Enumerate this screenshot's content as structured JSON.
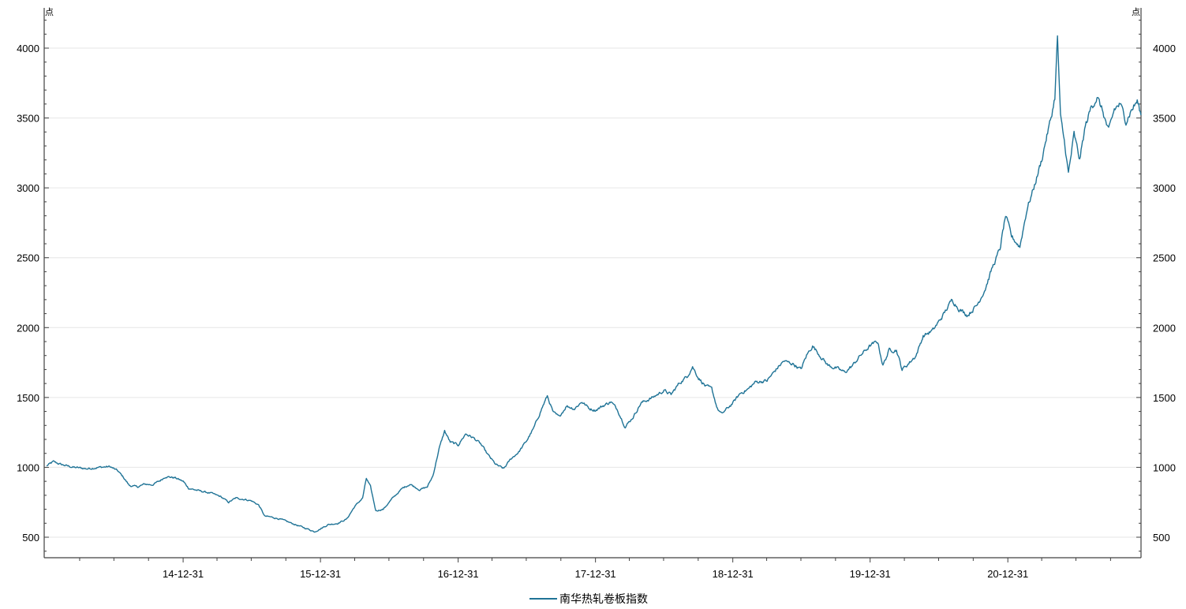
{
  "chart_data": {
    "type": "line",
    "y_unit": "点",
    "ylim": [
      350,
      4200
    ],
    "yticks": [
      500,
      1000,
      1500,
      2000,
      2500,
      3000,
      3500,
      4000
    ],
    "grid": true,
    "dual_y_axis": true,
    "legend_position": "bottom-center",
    "color": "#1f7396",
    "x_tick_labels": [
      "14-12-31",
      "15-12-31",
      "16-12-31",
      "17-12-31",
      "18-12-31",
      "19-12-31",
      "20-12-31"
    ],
    "series": [
      {
        "name": "南华热轧卷板指数",
        "points": [
          [
            "2014-01-02",
            1010
          ],
          [
            "2014-01-20",
            1040
          ],
          [
            "2014-02-10",
            1020
          ],
          [
            "2014-03-15",
            1000
          ],
          [
            "2014-04-20",
            990
          ],
          [
            "2014-05-20",
            1000
          ],
          [
            "2014-06-20",
            1005
          ],
          [
            "2014-07-10",
            975
          ],
          [
            "2014-07-25",
            930
          ],
          [
            "2014-08-10",
            870
          ],
          [
            "2014-09-01",
            860
          ],
          [
            "2014-09-20",
            880
          ],
          [
            "2014-10-10",
            875
          ],
          [
            "2014-10-31",
            905
          ],
          [
            "2014-11-15",
            935
          ],
          [
            "2014-12-10",
            925
          ],
          [
            "2014-12-31",
            900
          ],
          [
            "2015-01-15",
            850
          ],
          [
            "2015-02-15",
            830
          ],
          [
            "2015-03-15",
            815
          ],
          [
            "2015-04-10",
            790
          ],
          [
            "2015-05-01",
            750
          ],
          [
            "2015-05-20",
            780
          ],
          [
            "2015-06-15",
            770
          ],
          [
            "2015-07-01",
            760
          ],
          [
            "2015-07-20",
            730
          ],
          [
            "2015-08-05",
            650
          ],
          [
            "2015-08-20",
            645
          ],
          [
            "2015-09-15",
            630
          ],
          [
            "2015-10-15",
            600
          ],
          [
            "2015-11-15",
            570
          ],
          [
            "2015-12-01",
            555
          ],
          [
            "2015-12-15",
            540
          ],
          [
            "2015-12-31",
            560
          ],
          [
            "2016-01-20",
            590
          ],
          [
            "2016-02-15",
            600
          ],
          [
            "2016-03-10",
            630
          ],
          [
            "2016-03-31",
            720
          ],
          [
            "2016-04-21",
            780
          ],
          [
            "2016-05-01",
            920
          ],
          [
            "2016-05-12",
            860
          ],
          [
            "2016-05-26",
            690
          ],
          [
            "2016-06-15",
            700
          ],
          [
            "2016-07-10",
            780
          ],
          [
            "2016-08-05",
            850
          ],
          [
            "2016-08-25",
            880
          ],
          [
            "2016-09-20",
            840
          ],
          [
            "2016-10-10",
            860
          ],
          [
            "2016-10-25",
            940
          ],
          [
            "2016-11-10",
            1130
          ],
          [
            "2016-11-25",
            1260
          ],
          [
            "2016-12-10",
            1180
          ],
          [
            "2016-12-31",
            1160
          ],
          [
            "2017-01-20",
            1240
          ],
          [
            "2017-02-10",
            1210
          ],
          [
            "2017-02-28",
            1170
          ],
          [
            "2017-03-20",
            1090
          ],
          [
            "2017-04-10",
            1020
          ],
          [
            "2017-05-01",
            990
          ],
          [
            "2017-05-20",
            1060
          ],
          [
            "2017-06-10",
            1110
          ],
          [
            "2017-07-01",
            1190
          ],
          [
            "2017-07-20",
            1280
          ],
          [
            "2017-08-10",
            1420
          ],
          [
            "2017-08-25",
            1510
          ],
          [
            "2017-09-10",
            1390
          ],
          [
            "2017-09-25",
            1360
          ],
          [
            "2017-10-15",
            1440
          ],
          [
            "2017-11-05",
            1420
          ],
          [
            "2017-11-25",
            1470
          ],
          [
            "2017-12-15",
            1420
          ],
          [
            "2017-12-31",
            1410
          ],
          [
            "2018-01-20",
            1440
          ],
          [
            "2018-02-10",
            1470
          ],
          [
            "2018-02-28",
            1410
          ],
          [
            "2018-03-20",
            1290
          ],
          [
            "2018-04-10",
            1360
          ],
          [
            "2018-05-01",
            1460
          ],
          [
            "2018-06-01",
            1500
          ],
          [
            "2018-07-01",
            1550
          ],
          [
            "2018-07-20",
            1520
          ],
          [
            "2018-08-10",
            1600
          ],
          [
            "2018-08-31",
            1650
          ],
          [
            "2018-09-15",
            1720
          ],
          [
            "2018-10-01",
            1640
          ],
          [
            "2018-10-20",
            1580
          ],
          [
            "2018-11-05",
            1560
          ],
          [
            "2018-11-20",
            1420
          ],
          [
            "2018-12-01",
            1380
          ],
          [
            "2018-12-31",
            1460
          ],
          [
            "2019-01-20",
            1530
          ],
          [
            "2019-02-10",
            1560
          ],
          [
            "2019-03-01",
            1610
          ],
          [
            "2019-04-01",
            1620
          ],
          [
            "2019-04-25",
            1700
          ],
          [
            "2019-05-15",
            1760
          ],
          [
            "2019-06-10",
            1740
          ],
          [
            "2019-06-30",
            1700
          ],
          [
            "2019-07-15",
            1800
          ],
          [
            "2019-07-31",
            1870
          ],
          [
            "2019-08-20",
            1800
          ],
          [
            "2019-09-10",
            1730
          ],
          [
            "2019-10-01",
            1710
          ],
          [
            "2019-10-25",
            1680
          ],
          [
            "2019-11-15",
            1730
          ],
          [
            "2019-12-05",
            1800
          ],
          [
            "2019-12-31",
            1870
          ],
          [
            "2020-01-20",
            1900
          ],
          [
            "2020-02-03",
            1730
          ],
          [
            "2020-02-20",
            1840
          ],
          [
            "2020-03-10",
            1840
          ],
          [
            "2020-03-25",
            1700
          ],
          [
            "2020-04-10",
            1740
          ],
          [
            "2020-05-01",
            1800
          ],
          [
            "2020-05-20",
            1940
          ],
          [
            "2020-06-15",
            1980
          ],
          [
            "2020-07-10",
            2080
          ],
          [
            "2020-08-05",
            2200
          ],
          [
            "2020-08-25",
            2130
          ],
          [
            "2020-09-15",
            2090
          ],
          [
            "2020-10-10",
            2160
          ],
          [
            "2020-11-01",
            2280
          ],
          [
            "2020-11-20",
            2430
          ],
          [
            "2020-12-10",
            2560
          ],
          [
            "2020-12-25",
            2800
          ],
          [
            "2021-01-10",
            2650
          ],
          [
            "2021-02-01",
            2580
          ],
          [
            "2021-02-20",
            2850
          ],
          [
            "2021-03-10",
            3000
          ],
          [
            "2021-03-31",
            3200
          ],
          [
            "2021-04-10",
            3330
          ],
          [
            "2021-04-25",
            3500
          ],
          [
            "2021-05-05",
            3650
          ],
          [
            "2021-05-12",
            4080
          ],
          [
            "2021-05-20",
            3500
          ],
          [
            "2021-06-01",
            3300
          ],
          [
            "2021-06-10",
            3100
          ],
          [
            "2021-06-25",
            3380
          ],
          [
            "2021-07-10",
            3200
          ],
          [
            "2021-07-25",
            3440
          ],
          [
            "2021-08-10",
            3580
          ],
          [
            "2021-08-25",
            3650
          ],
          [
            "2021-09-10",
            3540
          ],
          [
            "2021-09-25",
            3400
          ],
          [
            "2021-10-10",
            3560
          ],
          [
            "2021-10-25",
            3600
          ],
          [
            "2021-11-10",
            3480
          ],
          [
            "2021-11-25",
            3560
          ],
          [
            "2021-12-10",
            3620
          ],
          [
            "2021-12-20",
            3520
          ]
        ]
      }
    ]
  }
}
